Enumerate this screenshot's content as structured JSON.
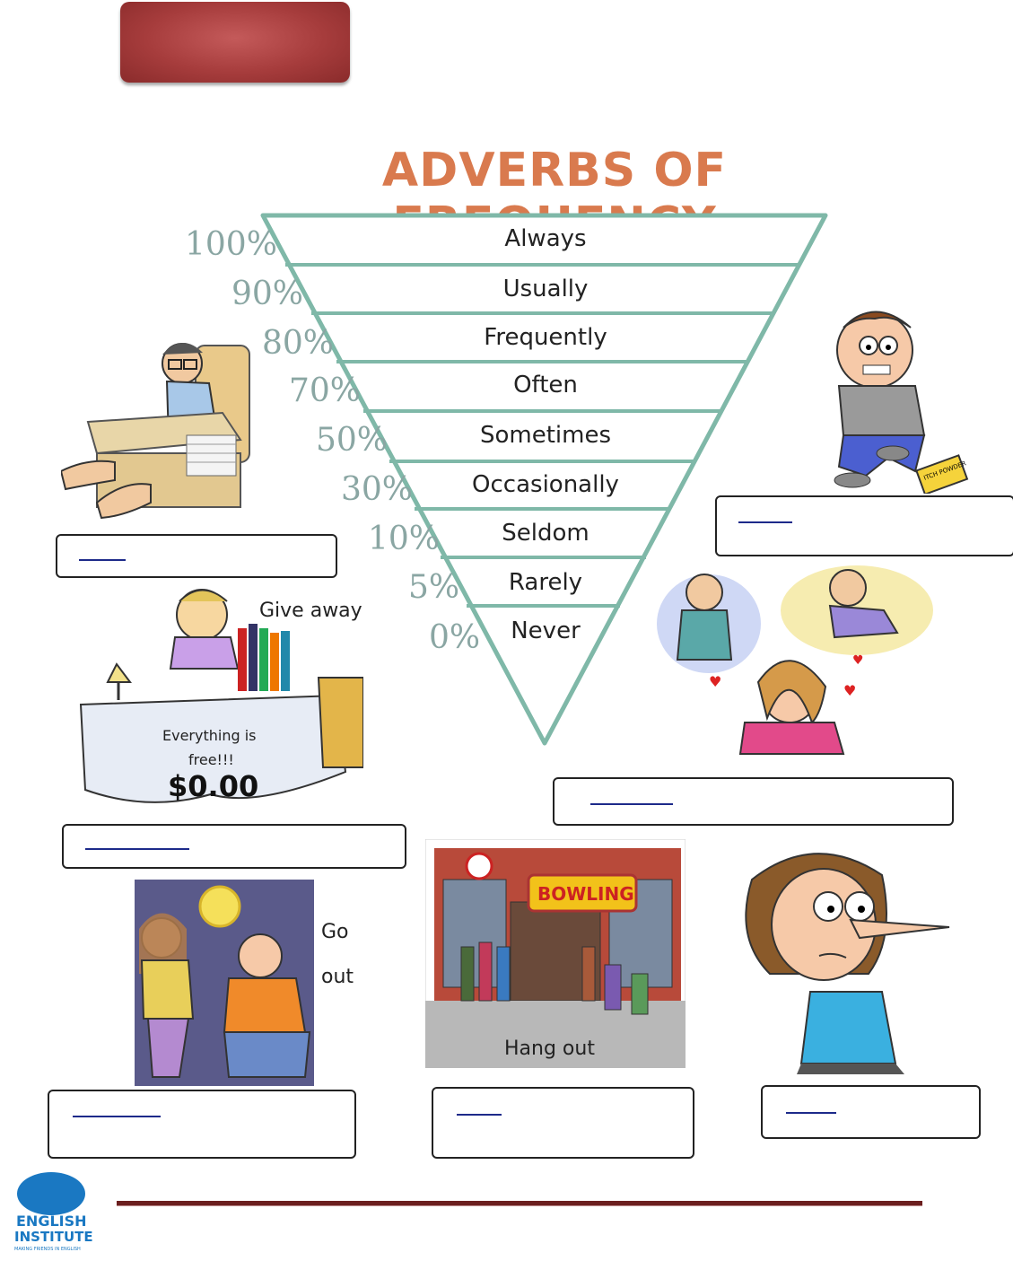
{
  "heading": "ADVERBS OF FREQUENCY",
  "scale": [
    {
      "percent": "100%",
      "adverb": "Always"
    },
    {
      "percent": "90%",
      "adverb": "Usually"
    },
    {
      "percent": "80%",
      "adverb": "Frequently"
    },
    {
      "percent": "70%",
      "adverb": "Often"
    },
    {
      "percent": "50%",
      "adverb": "Sometimes"
    },
    {
      "percent": "30%",
      "adverb": "Occasionally"
    },
    {
      "percent": "10%",
      "adverb": "Seldom"
    },
    {
      "percent": "5%",
      "adverb": "Rarely"
    },
    {
      "percent": "0%",
      "adverb": "Never"
    }
  ],
  "captions": {
    "give_away": "Give away",
    "everything_free_1": "Everything is",
    "everything_free_2": "free!!!",
    "price": "$0.00",
    "go": "Go",
    "out": "out",
    "hang_out": "Hang out",
    "bowling": "BOWLING",
    "itch_powder": "ITCH POWDER"
  },
  "logo": {
    "line1": "ENGLISH",
    "line2": "INSTITUTE",
    "tagline": "MAKING FRIENDS IN ENGLISH"
  },
  "colors": {
    "banner": "#a63c3c",
    "heading": "#d97a4e",
    "triangle_stroke": "#7fb8a8",
    "footer_line": "#6b1f1f",
    "logo_blue": "#1a78c2"
  }
}
